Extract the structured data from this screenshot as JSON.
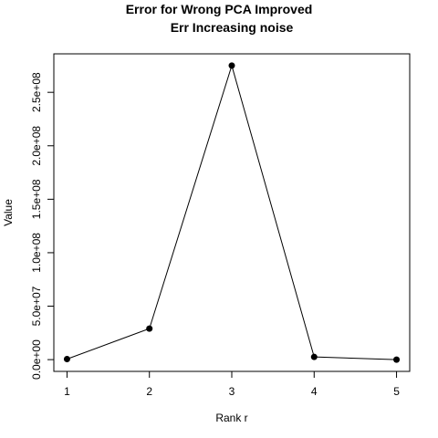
{
  "chart_data": {
    "type": "line",
    "title": "Error for Wrong PCA Improved",
    "subtitle": "Err Increasing noise",
    "xlabel": "Rank r",
    "ylabel": "Value",
    "x": [
      1,
      2,
      3,
      4,
      5
    ],
    "y": [
      500000,
      29000000,
      275000000,
      2500000,
      0
    ],
    "x_ticks": [
      1,
      2,
      3,
      4,
      5
    ],
    "x_tick_labels": [
      "1",
      "2",
      "3",
      "4",
      "5"
    ],
    "y_ticks": [
      0,
      50000000,
      100000000,
      150000000,
      200000000,
      250000000
    ],
    "y_tick_labels": [
      "0.0e+00",
      "5.0e+07",
      "1.0e+08",
      "1.5e+08",
      "2.0e+08",
      "2.5e+08"
    ],
    "xlim": [
      0.84,
      5.16
    ],
    "ylim": [
      -11000000,
      286000000
    ],
    "grid": false,
    "marker": "filled-circle",
    "line_color": "#000000"
  }
}
